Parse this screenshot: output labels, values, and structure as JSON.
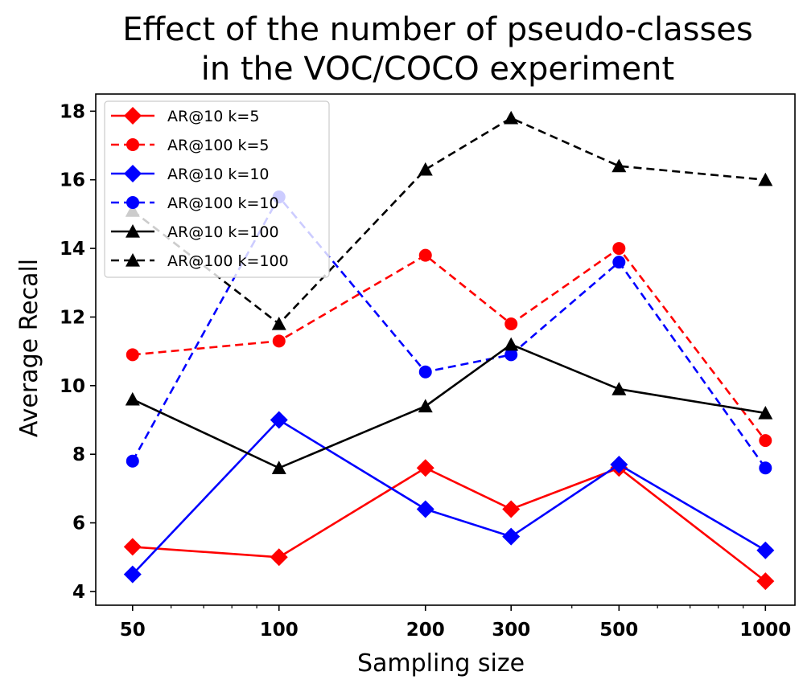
{
  "chart_data": {
    "type": "line",
    "title_lines": [
      "Effect of the number of pseudo-classes",
      "in the VOC/COCO experiment"
    ],
    "xlabel": "Sampling size",
    "ylabel": "Average Recall",
    "x_scale": "log",
    "x": [
      50,
      100,
      200,
      300,
      500,
      1000
    ],
    "xlim": [
      42,
      1150
    ],
    "ylim": [
      3.6,
      18.5
    ],
    "xticks": [
      50,
      100,
      200,
      300,
      500,
      1000
    ],
    "xtick_labels": [
      "50",
      "100",
      "200",
      "300",
      "500",
      "1000"
    ],
    "yticks": [
      4,
      6,
      8,
      10,
      12,
      14,
      16,
      18
    ],
    "ytick_labels": [
      "4",
      "6",
      "8",
      "10",
      "12",
      "14",
      "16",
      "18"
    ],
    "grid": false,
    "legend_position": "top-left",
    "series": [
      {
        "name": "AR@10 k=5",
        "values": [
          5.3,
          5.0,
          7.6,
          6.4,
          7.6,
          4.3
        ],
        "color": "#ff0000",
        "linestyle": "solid",
        "marker": "diamond"
      },
      {
        "name": "AR@100 k=5",
        "values": [
          10.9,
          11.3,
          13.8,
          11.8,
          14.0,
          8.4
        ],
        "color": "#ff0000",
        "linestyle": "dashed",
        "marker": "circle"
      },
      {
        "name": "AR@10 k=10",
        "values": [
          4.5,
          9.0,
          6.4,
          5.6,
          7.7,
          5.2
        ],
        "color": "#0000ff",
        "linestyle": "solid",
        "marker": "diamond"
      },
      {
        "name": "AR@100 k=10",
        "values": [
          7.8,
          15.5,
          10.4,
          10.9,
          13.6,
          7.6
        ],
        "color": "#0000ff",
        "linestyle": "dashed",
        "marker": "circle"
      },
      {
        "name": "AR@10 k=100",
        "values": [
          9.6,
          7.6,
          9.4,
          11.2,
          9.9,
          9.2
        ],
        "color": "#000000",
        "linestyle": "solid",
        "marker": "triangle"
      },
      {
        "name": "AR@100 k=100",
        "values": [
          15.1,
          11.8,
          16.3,
          17.8,
          16.4,
          16.0
        ],
        "color": "#000000",
        "linestyle": "dashed",
        "marker": "triangle"
      }
    ]
  }
}
